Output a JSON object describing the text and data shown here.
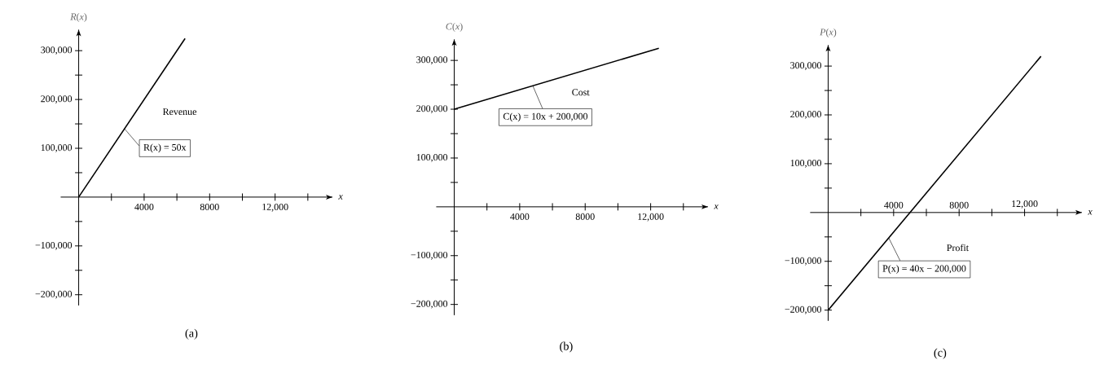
{
  "chart_data": [
    {
      "type": "line",
      "xlabel": "*x*",
      "ylabel": "*R*(*x*)",
      "series": [
        {
          "name": "Revenue",
          "color": "#000000",
          "x": [
            0,
            6500
          ],
          "values": [
            0,
            325000
          ]
        }
      ],
      "annotations": [
        {
          "text": "R(x) = 50x",
          "x": 2800,
          "y": 140000
        },
        "(a)"
      ],
      "xlim": [
        -1100,
        15500
      ],
      "ylim": [
        -222000,
        343000
      ],
      "xticks": [
        {
          "value": 2000,
          "label": null
        },
        4000,
        {
          "value": 6000,
          "label": null
        },
        8000,
        {
          "value": 10000,
          "label": null
        },
        {
          "value": 12000,
          "label": "12,000"
        },
        {
          "value": 14000,
          "label": null
        }
      ],
      "yticks": [
        {
          "value": -200000,
          "label": "−200,000"
        },
        {
          "value": -150000,
          "label": null
        },
        {
          "value": -100000,
          "label": "−100,000"
        },
        {
          "value": -50000,
          "label": null
        },
        {
          "value": 50000,
          "label": null
        },
        {
          "value": 100000,
          "label": "100,000"
        },
        {
          "value": 150000,
          "label": null
        },
        {
          "value": 200000,
          "label": "200,000"
        },
        {
          "value": 250000,
          "label": null
        },
        {
          "value": 300000,
          "label": "300,000"
        }
      ]
    },
    {
      "type": "line",
      "xlabel": "*x*",
      "ylabel": "*C*(*x*)",
      "series": [
        {
          "name": "Cost",
          "color": "#000000",
          "x": [
            0,
            12500
          ],
          "values": [
            200000,
            325000
          ]
        }
      ],
      "annotations": [
        {
          "text": "C(x) = 10x + 200,000",
          "x": 4800,
          "y": 248000
        },
        "(b)"
      ],
      "xlim": [
        -1100,
        15500
      ],
      "ylim": [
        -222000,
        343000
      ],
      "xticks": [
        {
          "value": 2000,
          "label": null
        },
        4000,
        {
          "value": 6000,
          "label": null
        },
        8000,
        {
          "value": 10000,
          "label": null
        },
        {
          "value": 12000,
          "label": "12,000"
        },
        {
          "value": 14000,
          "label": null
        }
      ],
      "yticks": [
        {
          "value": -200000,
          "label": "−200,000"
        },
        {
          "value": -150000,
          "label": null
        },
        {
          "value": -100000,
          "label": "−100,000"
        },
        {
          "value": -50000,
          "label": null
        },
        {
          "value": 50000,
          "label": null
        },
        {
          "value": 100000,
          "label": "100,000"
        },
        {
          "value": 150000,
          "label": null
        },
        {
          "value": 200000,
          "label": "200,000"
        },
        {
          "value": 250000,
          "label": null
        },
        {
          "value": 300000,
          "label": "300,000"
        }
      ]
    },
    {
      "type": "line",
      "xlabel": "*x*",
      "ylabel": "*P*(*x*)",
      "series": [
        {
          "name": "Profit",
          "color": "#000000",
          "x": [
            0,
            13000
          ],
          "values": [
            -200000,
            320000
          ]
        }
      ],
      "annotations": [
        {
          "text": "P(x) = 40x − 200,000",
          "x": 3700,
          "y": -52000
        },
        "(c)"
      ],
      "xlim": [
        -1100,
        15500
      ],
      "ylim": [
        -222000,
        343000
      ],
      "xticks": [
        {
          "value": 2000,
          "label": null
        },
        4000,
        {
          "value": 6000,
          "label": null
        },
        8000,
        {
          "value": 10000,
          "label": null
        },
        {
          "value": 12000,
          "label": "12,000"
        },
        {
          "value": 14000,
          "label": null
        }
      ],
      "yticks": [
        {
          "value": -200000,
          "label": "−200,000"
        },
        {
          "value": -150000,
          "label": null
        },
        {
          "value": -100000,
          "label": "−100,000"
        },
        {
          "value": -50000,
          "label": null
        },
        {
          "value": 50000,
          "label": null
        },
        {
          "value": 100000,
          "label": "100,000"
        },
        {
          "value": 150000,
          "label": null
        },
        {
          "value": 200000,
          "label": "200,000"
        },
        {
          "value": 250000,
          "label": null
        },
        {
          "value": 300000,
          "label": "300,000"
        }
      ]
    }
  ]
}
